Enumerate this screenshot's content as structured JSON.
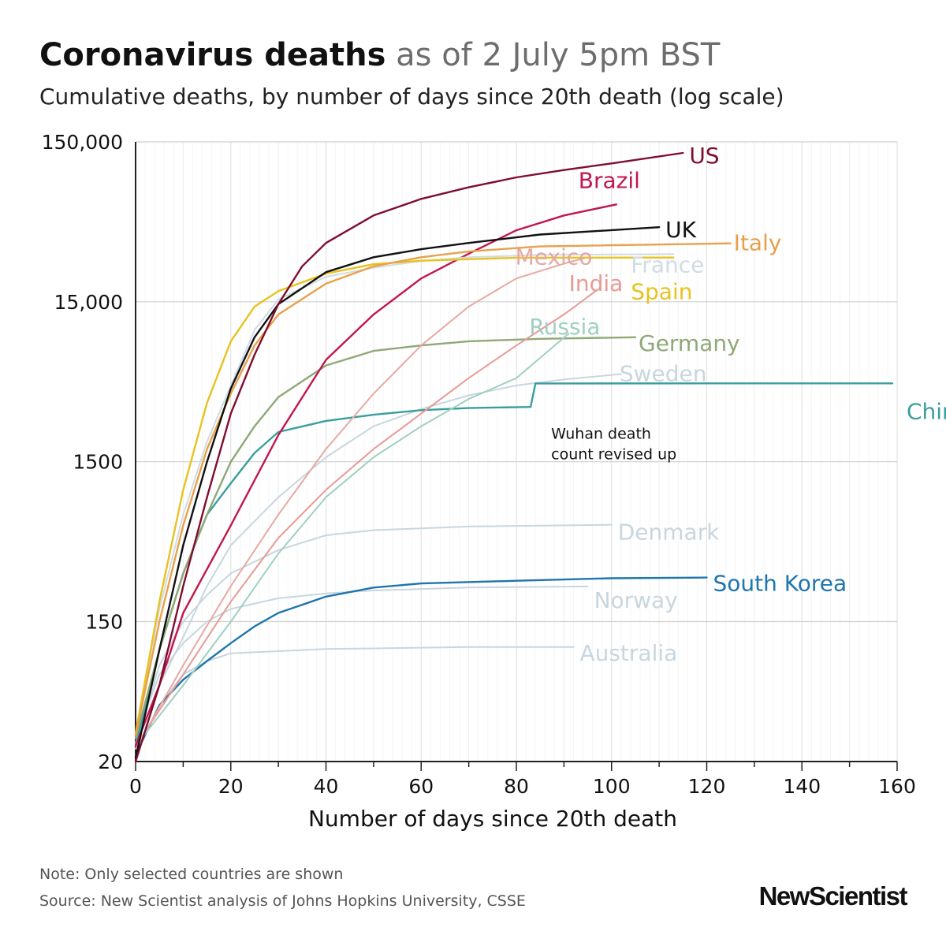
{
  "header": {
    "title": "Coronavirus deaths",
    "date_note": "as of 2 July 5pm BST",
    "subtitle": "Cumulative deaths, by number of days since 20th death (log scale)"
  },
  "footer": {
    "note": "Note: Only selected countries are shown",
    "source": "Source: New Scientist analysis of Johns Hopkins University, CSSE"
  },
  "brand": {
    "logo": "NewScientist"
  },
  "chart_data": {
    "type": "line",
    "scale": "log",
    "xlabel": "Number of days since 20th death",
    "xlim": [
      0,
      160
    ],
    "ylim": [
      20,
      150000
    ],
    "x_ticks": [
      0,
      20,
      40,
      60,
      80,
      100,
      120,
      140,
      160
    ],
    "y_ticks": [
      20,
      150,
      1500,
      15000,
      150000
    ],
    "y_tick_labels": [
      "20",
      "150",
      "1500",
      "15,000",
      "150,000"
    ],
    "grid": true,
    "series": [
      {
        "name": "Australia",
        "color": "#c8d6df",
        "points": [
          [
            0,
            22
          ],
          [
            5,
            45
          ],
          [
            10,
            70
          ],
          [
            15,
            85
          ],
          [
            20,
            95
          ],
          [
            30,
            98
          ],
          [
            40,
            101
          ],
          [
            50,
            102
          ],
          [
            70,
            104
          ],
          [
            92,
            104
          ]
        ]
      },
      {
        "name": "Norway",
        "color": "#c8d6df",
        "points": [
          [
            0,
            28
          ],
          [
            5,
            70
          ],
          [
            10,
            110
          ],
          [
            15,
            150
          ],
          [
            20,
            180
          ],
          [
            30,
            210
          ],
          [
            40,
            225
          ],
          [
            50,
            235
          ],
          [
            70,
            245
          ],
          [
            95,
            249
          ]
        ]
      },
      {
        "name": "Denmark",
        "color": "#c8d6df",
        "points": [
          [
            0,
            26
          ],
          [
            5,
            80
          ],
          [
            10,
            150
          ],
          [
            15,
            220
          ],
          [
            20,
            300
          ],
          [
            30,
            420
          ],
          [
            40,
            520
          ],
          [
            50,
            560
          ],
          [
            70,
            590
          ],
          [
            100,
            605
          ]
        ]
      },
      {
        "name": "South Korea",
        "color": "#1f75ad",
        "points": [
          [
            0,
            22
          ],
          [
            5,
            45
          ],
          [
            10,
            65
          ],
          [
            15,
            85
          ],
          [
            20,
            110
          ],
          [
            25,
            140
          ],
          [
            30,
            170
          ],
          [
            40,
            215
          ],
          [
            50,
            245
          ],
          [
            60,
            260
          ],
          [
            80,
            270
          ],
          [
            100,
            280
          ],
          [
            120,
            283
          ]
        ]
      },
      {
        "name": "Sweden",
        "color": "#c8d6df",
        "points": [
          [
            0,
            25
          ],
          [
            5,
            60
          ],
          [
            10,
            120
          ],
          [
            15,
            250
          ],
          [
            20,
            450
          ],
          [
            30,
            900
          ],
          [
            40,
            1600
          ],
          [
            50,
            2500
          ],
          [
            60,
            3200
          ],
          [
            70,
            3900
          ],
          [
            80,
            4500
          ],
          [
            90,
            4900
          ],
          [
            102,
            5300
          ]
        ]
      },
      {
        "name": "China",
        "color": "#3a9e9e",
        "points": [
          [
            0,
            25
          ],
          [
            5,
            100
          ],
          [
            10,
            300
          ],
          [
            15,
            700
          ],
          [
            20,
            1100
          ],
          [
            25,
            1700
          ],
          [
            30,
            2300
          ],
          [
            40,
            2700
          ],
          [
            50,
            2950
          ],
          [
            60,
            3150
          ],
          [
            70,
            3250
          ],
          [
            83,
            3300
          ],
          [
            84,
            4630
          ],
          [
            159,
            4634
          ]
        ]
      },
      {
        "name": "Germany",
        "color": "#8fa877",
        "points": [
          [
            0,
            28
          ],
          [
            5,
            100
          ],
          [
            10,
            300
          ],
          [
            15,
            700
          ],
          [
            20,
            1500
          ],
          [
            25,
            2500
          ],
          [
            30,
            3800
          ],
          [
            40,
            6000
          ],
          [
            50,
            7400
          ],
          [
            60,
            8000
          ],
          [
            70,
            8500
          ],
          [
            85,
            8800
          ],
          [
            105,
            9000
          ]
        ]
      },
      {
        "name": "Russia",
        "color": "#9fd0bf",
        "points": [
          [
            0,
            25
          ],
          [
            10,
            60
          ],
          [
            20,
            150
          ],
          [
            30,
            400
          ],
          [
            40,
            900
          ],
          [
            50,
            1600
          ],
          [
            60,
            2500
          ],
          [
            70,
            3700
          ],
          [
            80,
            5000
          ],
          [
            91,
            9500
          ]
        ]
      },
      {
        "name": "India",
        "color": "#e89a94",
        "points": [
          [
            0,
            25
          ],
          [
            10,
            70
          ],
          [
            20,
            200
          ],
          [
            30,
            500
          ],
          [
            40,
            1000
          ],
          [
            50,
            1800
          ],
          [
            60,
            3000
          ],
          [
            70,
            5000
          ],
          [
            80,
            8000
          ],
          [
            90,
            12500
          ],
          [
            97,
            17800
          ]
        ]
      },
      {
        "name": "Mexico",
        "color": "#e6a9a3",
        "points": [
          [
            0,
            24
          ],
          [
            10,
            80
          ],
          [
            20,
            250
          ],
          [
            30,
            700
          ],
          [
            40,
            1800
          ],
          [
            50,
            4000
          ],
          [
            60,
            8000
          ],
          [
            70,
            14000
          ],
          [
            80,
            21000
          ],
          [
            90,
            26000
          ],
          [
            95,
            28500
          ]
        ]
      },
      {
        "name": "Brazil",
        "color": "#c2164d",
        "points": [
          [
            0,
            25
          ],
          [
            5,
            60
          ],
          [
            10,
            170
          ],
          [
            20,
            600
          ],
          [
            30,
            2200
          ],
          [
            40,
            6500
          ],
          [
            50,
            12500
          ],
          [
            60,
            21000
          ],
          [
            70,
            30000
          ],
          [
            80,
            42000
          ],
          [
            90,
            52000
          ],
          [
            101,
            61000
          ]
        ]
      },
      {
        "name": "France",
        "color": "#d0dbe3",
        "points": [
          [
            0,
            30
          ],
          [
            5,
            180
          ],
          [
            10,
            700
          ],
          [
            15,
            2000
          ],
          [
            20,
            4500
          ],
          [
            25,
            10000
          ],
          [
            30,
            15500
          ],
          [
            40,
            21500
          ],
          [
            50,
            24500
          ],
          [
            60,
            27000
          ],
          [
            70,
            28500
          ],
          [
            85,
            29500
          ],
          [
            113,
            29800
          ]
        ]
      },
      {
        "name": "Spain",
        "color": "#e8c21f",
        "points": [
          [
            0,
            30
          ],
          [
            5,
            200
          ],
          [
            10,
            1000
          ],
          [
            15,
            3500
          ],
          [
            20,
            8500
          ],
          [
            25,
            14000
          ],
          [
            30,
            17500
          ],
          [
            40,
            22500
          ],
          [
            50,
            25800
          ],
          [
            60,
            27100
          ],
          [
            80,
            28300
          ],
          [
            113,
            28360
          ]
        ]
      },
      {
        "name": "Italy",
        "color": "#e8a14a",
        "points": [
          [
            0,
            29
          ],
          [
            5,
            150
          ],
          [
            10,
            600
          ],
          [
            15,
            1800
          ],
          [
            20,
            4000
          ],
          [
            25,
            8000
          ],
          [
            30,
            12500
          ],
          [
            40,
            19500
          ],
          [
            50,
            25000
          ],
          [
            60,
            28500
          ],
          [
            70,
            31000
          ],
          [
            85,
            33300
          ],
          [
            125,
            34800
          ]
        ]
      },
      {
        "name": "UK",
        "color": "#111111",
        "points": [
          [
            0,
            21
          ],
          [
            5,
            100
          ],
          [
            10,
            450
          ],
          [
            15,
            1500
          ],
          [
            20,
            4300
          ],
          [
            25,
            9000
          ],
          [
            30,
            14500
          ],
          [
            40,
            23000
          ],
          [
            50,
            28500
          ],
          [
            60,
            32000
          ],
          [
            70,
            35000
          ],
          [
            85,
            39500
          ],
          [
            110,
            43900
          ]
        ]
      },
      {
        "name": "US",
        "color": "#7f0d2e",
        "points": [
          [
            0,
            20
          ],
          [
            5,
            60
          ],
          [
            10,
            250
          ],
          [
            15,
            900
          ],
          [
            20,
            3000
          ],
          [
            25,
            7000
          ],
          [
            30,
            14500
          ],
          [
            35,
            25000
          ],
          [
            40,
            35000
          ],
          [
            50,
            52000
          ],
          [
            60,
            66000
          ],
          [
            70,
            78000
          ],
          [
            80,
            90000
          ],
          [
            90,
            100000
          ],
          [
            100,
            110000
          ],
          [
            115,
            128000
          ]
        ]
      }
    ],
    "annotations": [
      {
        "text_lines": [
          "Wuhan death",
          "count revised up"
        ],
        "color": "#111111"
      }
    ]
  }
}
